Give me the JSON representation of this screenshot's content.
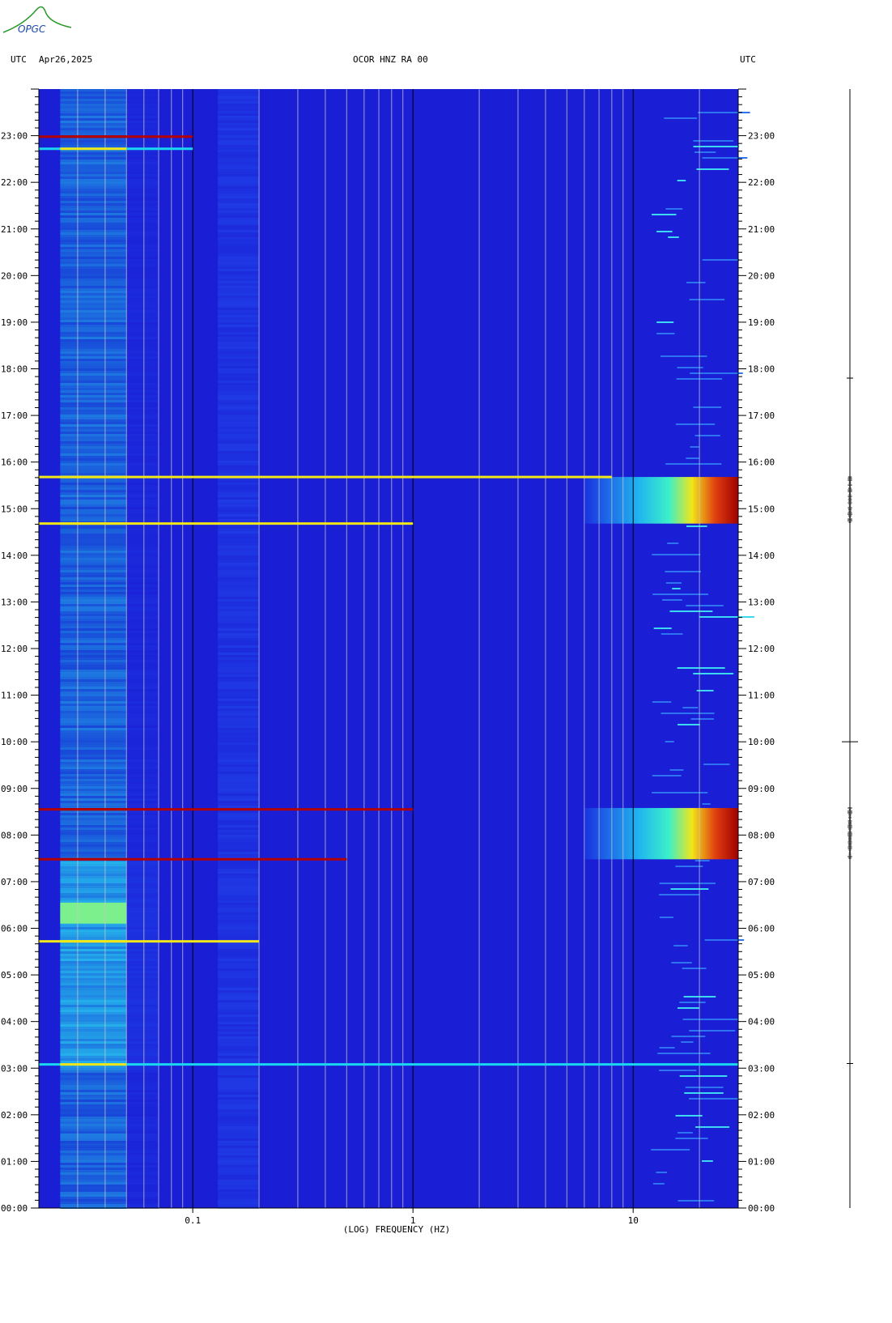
{
  "header": {
    "logo_text": "OPGC",
    "left_label": "UTC",
    "date": "Apr26,2025",
    "station": "OCOR HNZ RA 00",
    "right_label": "UTC"
  },
  "colors": {
    "background": "#1a1fd6",
    "low": "#1420c8",
    "cyan": "#19d7f0",
    "yellow": "#f0e619",
    "red": "#b40000",
    "gridline": "#c8c8c8"
  },
  "chart_data": {
    "type": "heatmap",
    "title": "OCOR HNZ RA 00",
    "xlabel": "(LOG) FREQUENCY (HZ)",
    "ylabel": "",
    "x_scale": "log",
    "xlim": [
      0.02,
      30
    ],
    "x_ticks": [
      {
        "value": 0.1,
        "label": "0.1"
      },
      {
        "value": 1,
        "label": "1"
      },
      {
        "value": 10,
        "label": "10"
      }
    ],
    "ylim_hours_utc": [
      0,
      24
    ],
    "y_ticks": [
      {
        "value": 0,
        "label": "00:00"
      },
      {
        "value": 1,
        "label": "01:00"
      },
      {
        "value": 2,
        "label": "02:00"
      },
      {
        "value": 3,
        "label": "03:00"
      },
      {
        "value": 4,
        "label": "04:00"
      },
      {
        "value": 5,
        "label": "05:00"
      },
      {
        "value": 6,
        "label": "06:00"
      },
      {
        "value": 7,
        "label": "07:00"
      },
      {
        "value": 8,
        "label": "08:00"
      },
      {
        "value": 9,
        "label": "09:00"
      },
      {
        "value": 10,
        "label": "10:00"
      },
      {
        "value": 11,
        "label": "11:00"
      },
      {
        "value": 12,
        "label": "12:00"
      },
      {
        "value": 13,
        "label": "13:00"
      },
      {
        "value": 14,
        "label": "14:00"
      },
      {
        "value": 15,
        "label": "15:00"
      },
      {
        "value": 16,
        "label": "16:00"
      },
      {
        "value": 17,
        "label": "17:00"
      },
      {
        "value": 18,
        "label": "18:00"
      },
      {
        "value": 19,
        "label": "19:00"
      },
      {
        "value": 20,
        "label": "20:00"
      },
      {
        "value": 21,
        "label": "21:00"
      },
      {
        "value": 22,
        "label": "22:00"
      },
      {
        "value": 23,
        "label": "23:00"
      }
    ],
    "grid_frequencies": [
      0.03,
      0.04,
      0.05,
      0.06,
      0.07,
      0.08,
      0.09,
      0.2,
      0.3,
      0.4,
      0.5,
      0.6,
      0.7,
      0.8,
      0.9,
      2,
      3,
      4,
      5,
      6,
      7,
      8,
      9,
      20
    ],
    "major_frequencies": [
      0.1,
      1,
      10
    ],
    "low_frequency_band": {
      "f_min": 0.025,
      "f_max": 0.05
    },
    "high_energy_windows": [
      {
        "t_start": 7.48,
        "t_end": 8.58,
        "f_onset": 6,
        "peak_level": "red"
      },
      {
        "t_start": 14.68,
        "t_end": 15.68,
        "f_onset": 6,
        "peak_level": "red"
      }
    ],
    "horizontal_lines": [
      {
        "t": 22.98,
        "f_max": 0.1,
        "level": "red"
      },
      {
        "t": 22.72,
        "f_max": 0.1,
        "level": "cyan"
      },
      {
        "t": 15.68,
        "f_max": 8,
        "level": "yellow"
      },
      {
        "t": 14.68,
        "f_max": 1,
        "level": "yellow"
      },
      {
        "t": 8.55,
        "f_max": 1,
        "level": "red"
      },
      {
        "t": 7.48,
        "f_max": 0.5,
        "level": "red"
      },
      {
        "t": 5.72,
        "f_max": 0.2,
        "level": "yellow"
      },
      {
        "t": 3.08,
        "f_max": 30,
        "level": "cyan"
      }
    ]
  }
}
